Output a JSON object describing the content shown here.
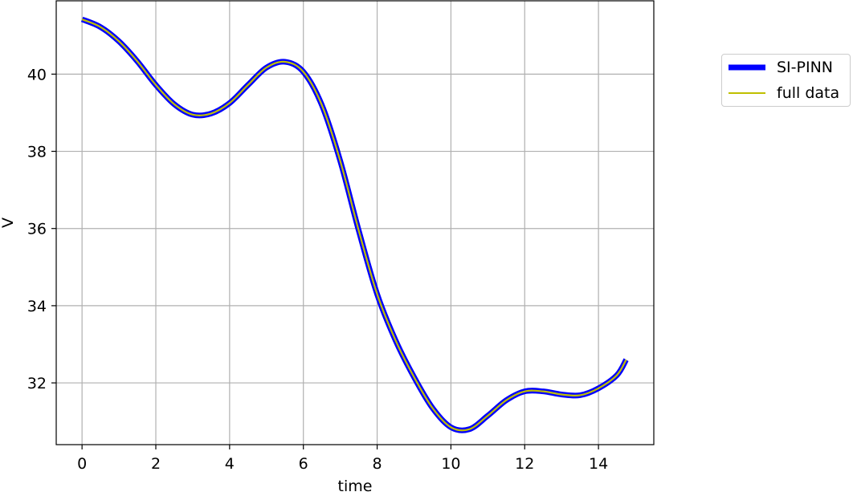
{
  "chart_data": {
    "type": "line",
    "xlabel": "time",
    "ylabel": "V",
    "xlim": [
      -0.7,
      15.5
    ],
    "ylim": [
      30.4,
      41.9
    ],
    "xticks": [
      0,
      2,
      4,
      6,
      8,
      10,
      12,
      14
    ],
    "yticks": [
      32,
      34,
      36,
      38,
      40
    ],
    "xtick_labels": [
      "0",
      "2",
      "4",
      "6",
      "8",
      "10",
      "12",
      "14"
    ],
    "ytick_labels": [
      "32",
      "34",
      "36",
      "38",
      "40"
    ],
    "grid": true,
    "legend_position": "outside-right",
    "x": [
      0,
      0.5,
      1,
      1.5,
      2,
      2.5,
      3,
      3.5,
      4,
      4.5,
      5,
      5.5,
      6,
      6.5,
      7,
      7.5,
      8,
      8.5,
      9,
      9.5,
      10,
      10.5,
      11,
      11.5,
      12,
      12.5,
      13,
      13.5,
      14,
      14.5,
      14.75
    ],
    "series": [
      {
        "name": "SI-PINN",
        "color": "#0000ff",
        "y": [
          41.42,
          41.22,
          40.85,
          40.33,
          39.72,
          39.22,
          38.95,
          38.98,
          39.25,
          39.72,
          40.17,
          40.32,
          40.06,
          39.2,
          37.75,
          35.95,
          34.3,
          33.1,
          32.15,
          31.35,
          30.85,
          30.8,
          31.15,
          31.55,
          31.78,
          31.78,
          31.7,
          31.68,
          31.86,
          32.2,
          32.6
        ]
      },
      {
        "name": "full data",
        "color": "#bfbf00",
        "y": [
          41.42,
          41.22,
          40.85,
          40.33,
          39.72,
          39.22,
          38.95,
          38.98,
          39.25,
          39.72,
          40.17,
          40.32,
          40.06,
          39.2,
          37.75,
          35.95,
          34.3,
          33.1,
          32.15,
          31.35,
          30.85,
          30.8,
          31.15,
          31.55,
          31.78,
          31.78,
          31.7,
          31.68,
          31.86,
          32.2,
          32.6
        ]
      }
    ]
  },
  "legend": {
    "items": [
      {
        "label": "SI-PINN",
        "color": "#0000ff"
      },
      {
        "label": "full data",
        "color": "#bfbf00"
      }
    ]
  }
}
